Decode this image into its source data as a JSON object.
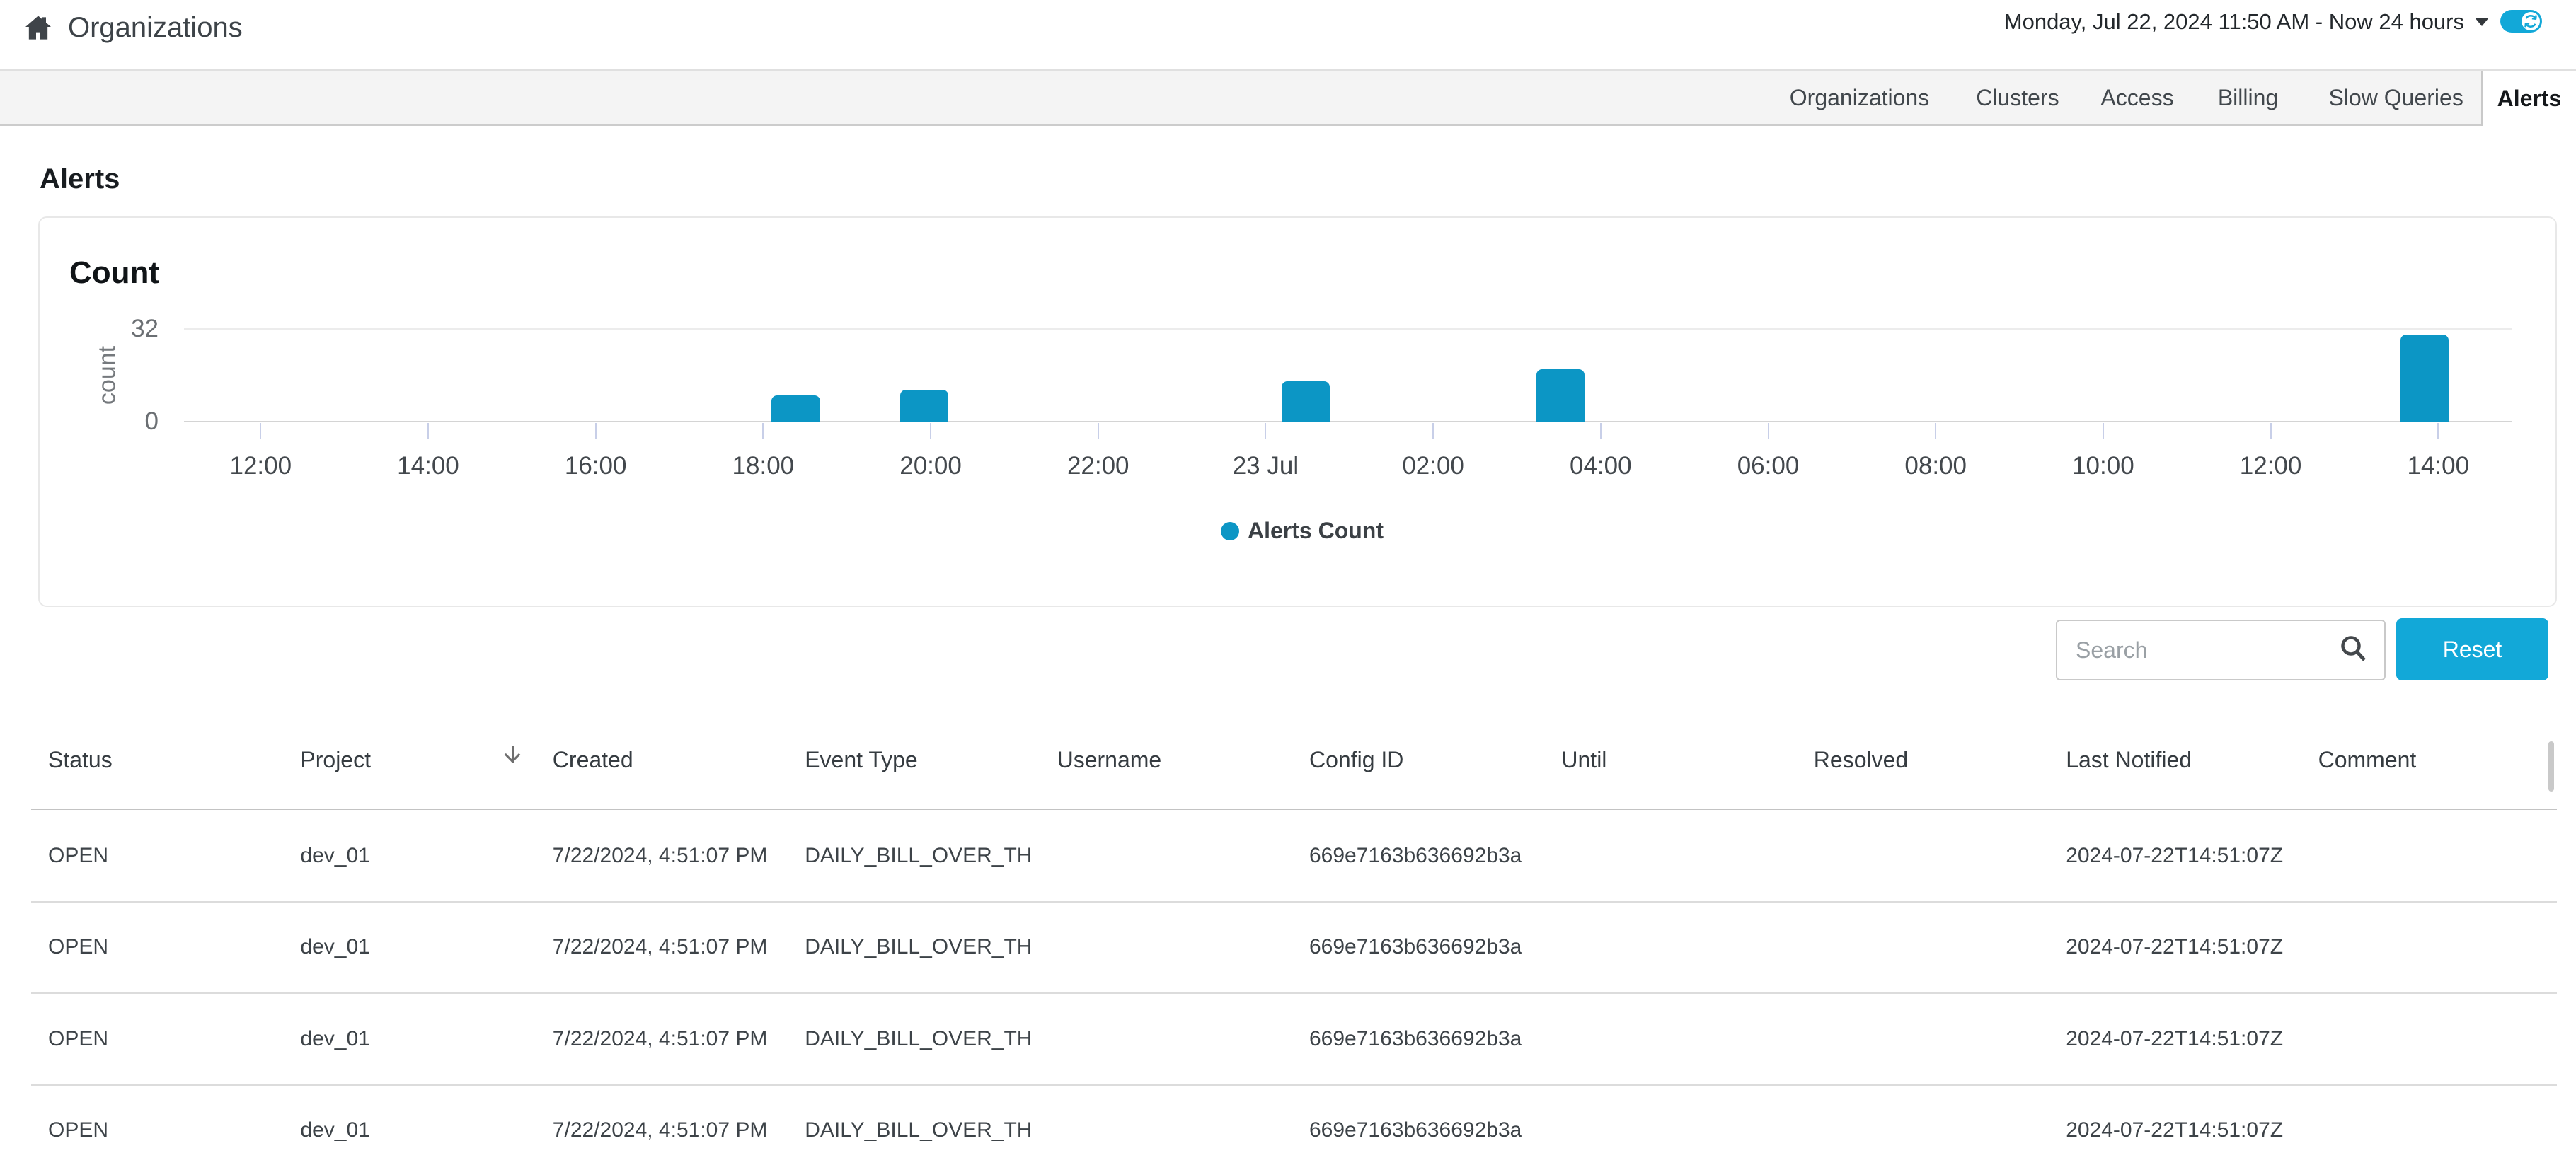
{
  "topbar": {
    "breadcrumb": "Organizations",
    "date_range_label": "Monday, Jul 22, 2024 11:50 AM - Now 24 hours",
    "auto_refresh_on": true
  },
  "tabs": [
    {
      "label": "Organizations",
      "active": false
    },
    {
      "label": "Clusters",
      "active": false
    },
    {
      "label": "Access",
      "active": false
    },
    {
      "label": "Billing",
      "active": false
    },
    {
      "label": "Slow Queries",
      "active": false
    },
    {
      "label": "Alerts",
      "active": true
    }
  ],
  "page": {
    "title": "Alerts"
  },
  "chart_data": {
    "type": "bar",
    "title": "Count",
    "ylabel": "count",
    "ylim": [
      0,
      32
    ],
    "y_ticks": [
      32,
      0
    ],
    "x_axis": {
      "start_hour": 11.085,
      "end_hour": 38.885,
      "tick_hours": [
        12,
        14,
        16,
        18,
        20,
        22,
        24,
        26,
        28,
        30,
        32,
        34,
        36,
        38
      ],
      "tick_labels": [
        "12:00",
        "14:00",
        "16:00",
        "18:00",
        "20:00",
        "22:00",
        "23 Jul",
        "02:00",
        "04:00",
        "06:00",
        "08:00",
        "10:00",
        "12:00",
        "14:00"
      ]
    },
    "bar_width_hours": 0.575,
    "series": [
      {
        "name": "Alerts Count",
        "color": "#0c96c5",
        "points": [
          {
            "t_hours": 18.39,
            "value": 9
          },
          {
            "t_hours": 19.92,
            "value": 11
          },
          {
            "t_hours": 24.48,
            "value": 14
          },
          {
            "t_hours": 27.52,
            "value": 18
          },
          {
            "t_hours": 37.84,
            "value": 30
          }
        ]
      }
    ],
    "legend_position": "bottom-center",
    "grid": "horizontal-only"
  },
  "controls": {
    "search_placeholder": "Search",
    "search_value": "",
    "reset_label": "Reset"
  },
  "table": {
    "columns": [
      {
        "label": "Status",
        "sorted": false
      },
      {
        "label": "Project",
        "sorted": true
      },
      {
        "label": "Created",
        "sorted": false
      },
      {
        "label": "Event Type",
        "sorted": false
      },
      {
        "label": "Username",
        "sorted": false
      },
      {
        "label": "Config ID",
        "sorted": false
      },
      {
        "label": "Until",
        "sorted": false
      },
      {
        "label": "Resolved",
        "sorted": false
      },
      {
        "label": "Last Notified",
        "sorted": false
      },
      {
        "label": "Comment",
        "sorted": false
      }
    ],
    "rows": [
      {
        "status": "OPEN",
        "project": "dev_01",
        "created": "7/22/2024, 4:51:07 PM",
        "event_type": "DAILY_BILL_OVER_TH",
        "username": "",
        "config_id": "669e7163b636692b3a",
        "until": "",
        "resolved": "",
        "last_notified": "2024-07-22T14:51:07Z",
        "comment": ""
      },
      {
        "status": "OPEN",
        "project": "dev_01",
        "created": "7/22/2024, 4:51:07 PM",
        "event_type": "DAILY_BILL_OVER_TH",
        "username": "",
        "config_id": "669e7163b636692b3a",
        "until": "",
        "resolved": "",
        "last_notified": "2024-07-22T14:51:07Z",
        "comment": ""
      },
      {
        "status": "OPEN",
        "project": "dev_01",
        "created": "7/22/2024, 4:51:07 PM",
        "event_type": "DAILY_BILL_OVER_TH",
        "username": "",
        "config_id": "669e7163b636692b3a",
        "until": "",
        "resolved": "",
        "last_notified": "2024-07-22T14:51:07Z",
        "comment": ""
      },
      {
        "status": "OPEN",
        "project": "dev_01",
        "created": "7/22/2024, 4:51:07 PM",
        "event_type": "DAILY_BILL_OVER_TH",
        "username": "",
        "config_id": "669e7163b636692b3a",
        "until": "",
        "resolved": "",
        "last_notified": "2024-07-22T14:51:07Z",
        "comment": ""
      }
    ]
  }
}
